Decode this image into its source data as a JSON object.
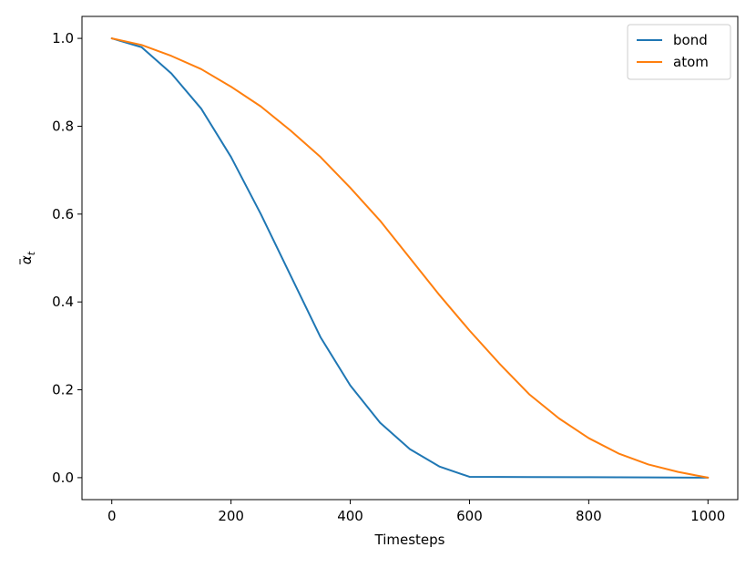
{
  "chart_data": {
    "type": "line",
    "title": "",
    "xlabel": "Timesteps",
    "ylabel_base": "α",
    "ylabel_sub": "t",
    "xlim": [
      -50,
      1050
    ],
    "ylim": [
      -0.05,
      1.05
    ],
    "xticks": [
      0,
      200,
      400,
      600,
      800,
      1000
    ],
    "yticks": [
      0.0,
      0.2,
      0.4,
      0.6,
      0.8,
      1.0
    ],
    "xtick_labels": [
      "0",
      "200",
      "400",
      "600",
      "800",
      "1000"
    ],
    "ytick_labels": [
      "0.0",
      "0.2",
      "0.4",
      "0.6",
      "0.8",
      "1.0"
    ],
    "grid": false,
    "legend_position": "top-right",
    "series": [
      {
        "name": "bond",
        "color": "#1f77b4",
        "x": [
          0,
          50,
          100,
          150,
          200,
          250,
          300,
          350,
          400,
          450,
          500,
          550,
          600,
          700,
          800,
          900,
          1000
        ],
        "y": [
          1.0,
          0.98,
          0.92,
          0.84,
          0.73,
          0.6,
          0.46,
          0.32,
          0.21,
          0.125,
          0.065,
          0.025,
          0.002,
          0.0015,
          0.001,
          0.0005,
          0.0
        ]
      },
      {
        "name": "atom",
        "color": "#ff7f0e",
        "x": [
          0,
          50,
          100,
          150,
          200,
          250,
          300,
          350,
          400,
          450,
          500,
          550,
          600,
          650,
          700,
          750,
          800,
          850,
          900,
          950,
          1000
        ],
        "y": [
          1.0,
          0.985,
          0.96,
          0.93,
          0.89,
          0.845,
          0.79,
          0.73,
          0.66,
          0.585,
          0.5,
          0.415,
          0.335,
          0.26,
          0.19,
          0.135,
          0.09,
          0.055,
          0.03,
          0.013,
          0.0
        ]
      }
    ]
  }
}
